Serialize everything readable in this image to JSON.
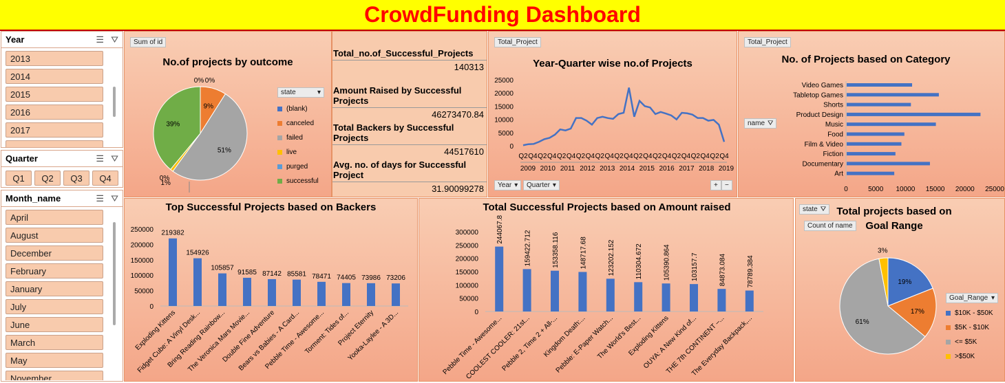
{
  "title": "CrowdFunding Dashboard",
  "slicers": {
    "year": {
      "label": "Year",
      "items": [
        "2013",
        "2014",
        "2015",
        "2016",
        "2017"
      ]
    },
    "quarter": {
      "label": "Quarter",
      "items": [
        "Q1",
        "Q2",
        "Q3",
        "Q4"
      ]
    },
    "month": {
      "label": "Month_name",
      "items": [
        "April",
        "August",
        "December",
        "February",
        "January",
        "July",
        "June",
        "March",
        "May",
        "November"
      ]
    }
  },
  "outcome": {
    "field_button": "Sum of id",
    "legend_button": "state",
    "chart_data": {
      "type": "pie",
      "title": "No.of projects by outcome",
      "slices": [
        {
          "name": "(blank)",
          "value": 0,
          "label": "0%",
          "color": "#4472c4"
        },
        {
          "name": "canceled",
          "value": 9,
          "label": "9%",
          "color": "#ed7d31"
        },
        {
          "name": "failed",
          "value": 51,
          "label": "51%",
          "color": "#a5a5a5"
        },
        {
          "name": "live",
          "value": 1,
          "label": "1%",
          "color": "#ffc000"
        },
        {
          "name": "purged",
          "value": 0,
          "label": "0%",
          "color": "#5b9bd5"
        },
        {
          "name": "successful",
          "value": 39,
          "label": "39%",
          "color": "#70ad47"
        }
      ],
      "extra_labels": [
        "0%",
        "0%"
      ]
    }
  },
  "kpis": [
    {
      "label": "Total_no.of_Successful_Projects",
      "value": "140313"
    },
    {
      "label": "Amount Raised by Successful Projects",
      "value": "46273470.84"
    },
    {
      "label": "Total Backers by Successful Projects",
      "value": "44517610"
    },
    {
      "label": "Avg. no. of days for Successful Project",
      "value": "31.90099278"
    }
  ],
  "yq": {
    "field_button": "Total_Project",
    "filter_year": "Year",
    "filter_quarter": "Quarter",
    "chart_data": {
      "type": "line",
      "title": "Year-Quarter wise no.of Projects",
      "ylim": [
        0,
        25000
      ],
      "yticks": [
        0,
        5000,
        10000,
        15000,
        20000,
        25000
      ],
      "quarter_labels": [
        "Q2",
        "Q4",
        "Q2",
        "Q4",
        "Q2",
        "Q4",
        "Q2",
        "Q4",
        "Q2",
        "Q4",
        "Q2",
        "Q4",
        "Q2",
        "Q4",
        "Q2",
        "Q4",
        "Q2",
        "Q4",
        "Q2",
        "Q4",
        "Q2",
        "Q4"
      ],
      "year_labels": [
        "2009",
        "2010",
        "2011",
        "2012",
        "2013",
        "2014",
        "2015",
        "2016",
        "2017",
        "2018",
        "2019"
      ],
      "values": [
        200,
        600,
        700,
        1500,
        2500,
        3000,
        4200,
        6200,
        5800,
        6500,
        10500,
        10500,
        9500,
        8000,
        10500,
        11000,
        10500,
        10200,
        12000,
        12500,
        22000,
        11000,
        17000,
        15000,
        14500,
        12000,
        12800,
        12200,
        11500,
        10000,
        12500,
        12300,
        11800,
        10500,
        10500,
        9500,
        9800,
        8000,
        1500
      ]
    }
  },
  "category": {
    "field_button": "Total_Project",
    "filter_name": "name",
    "chart_data": {
      "type": "bar",
      "title": "No. of Projects based on Category",
      "categories": [
        "Video Games",
        "Tabletop Games",
        "Shorts",
        "Product Design",
        "Music",
        "Food",
        "Film & Video",
        "Fiction",
        "Documentary",
        "Art"
      ],
      "values": [
        11000,
        15500,
        10800,
        22500,
        15000,
        9700,
        9200,
        8200,
        14000,
        8000
      ],
      "xlim": [
        0,
        25000
      ],
      "xticks": [
        "0",
        "5000",
        "10000",
        "15000",
        "20000",
        "25000"
      ]
    }
  },
  "backers": {
    "chart_data": {
      "type": "bar",
      "title": "Top Successful Projects based on Backers",
      "categories": [
        "Exploding Kittens",
        "Fidget Cube: A Vinyl Desk...",
        "Bring Reading Rainbow...",
        "The Veronica Mars Movie...",
        "Double Fine Adventure",
        "Bears vs Babies - A Card...",
        "Pebble Time - Awesome...",
        "Torment: Tides of...",
        "Project Eternity",
        "Yooka-Laylee - A 3D..."
      ],
      "values": [
        219382,
        154926,
        105857,
        91585,
        87142,
        85581,
        78471,
        74405,
        73986,
        73206
      ],
      "ylim": [
        0,
        250000
      ],
      "yticks": [
        "0",
        "50000",
        "100000",
        "150000",
        "200000",
        "250000"
      ]
    }
  },
  "amount": {
    "chart_data": {
      "type": "bar",
      "title": "Total Successful Projects based on Amount raised",
      "categories": [
        "Pebble Time - Awesome...",
        "COOLEST COOLER: 21st...",
        "Pebble 2, Time 2 + All-...",
        "Kingdom Death:...",
        "Pebble: E-Paper Watch...",
        "The World's Best...",
        "Exploding Kittens",
        "OUYA: A New Kind of...",
        "THE 7th CONTINENT –...",
        "The Everyday Backpack,..."
      ],
      "values": [
        244067.8,
        159422.712,
        153358.116,
        148717.68,
        123202.152,
        110304.672,
        105390.864,
        103157.7,
        84873.084,
        78789.384
      ],
      "value_labels": [
        "244067.8",
        "159422.712",
        "153358.116",
        "148717.68",
        "123202.152",
        "110304.672",
        "105390.864",
        "103157.7",
        "84873.084",
        "78789.384"
      ],
      "ylim": [
        0,
        300000
      ],
      "yticks": [
        "0",
        "50000",
        "100000",
        "150000",
        "200000",
        "250000",
        "300000"
      ]
    }
  },
  "goal": {
    "field_state": "state",
    "field_count": "Count of name",
    "legend_button": "Goal_Range",
    "chart_data": {
      "type": "pie",
      "title": "Total projects based on Goal Range",
      "slices": [
        {
          "name": "$10K - $50K",
          "value": 19,
          "label": "19%",
          "color": "#4472c4"
        },
        {
          "name": "$5K - $10K",
          "value": 17,
          "label": "17%",
          "color": "#ed7d31"
        },
        {
          "name": "<= $5K",
          "value": 61,
          "label": "61%",
          "color": "#a5a5a5"
        },
        {
          "name": ">$50K",
          "value": 3,
          "label": "3%",
          "color": "#ffc000"
        }
      ]
    }
  }
}
